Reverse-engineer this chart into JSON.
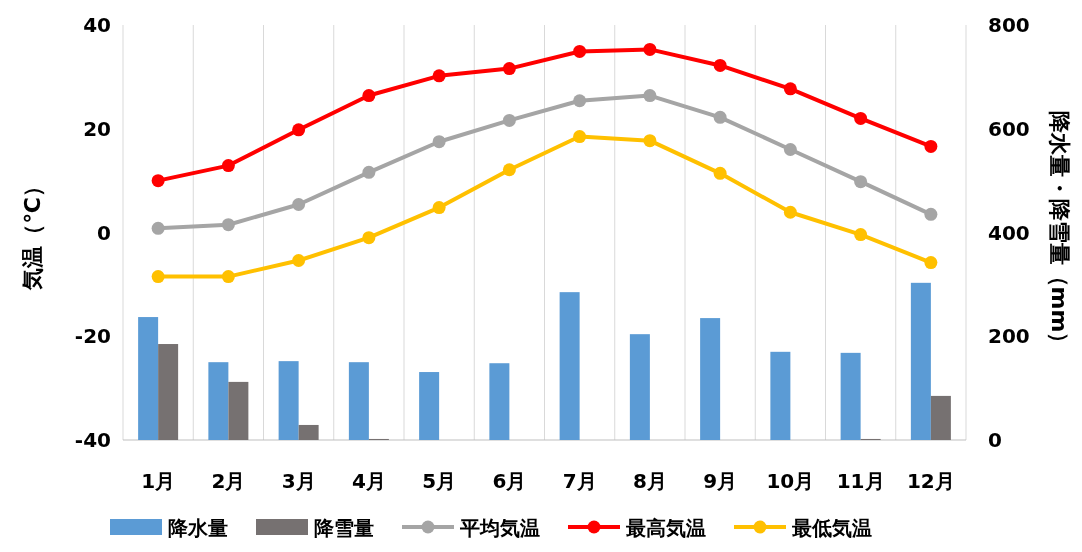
{
  "chart_data": {
    "type": "bar",
    "categories": [
      "1月",
      "2月",
      "3月",
      "4月",
      "5月",
      "6月",
      "7月",
      "8月",
      "9月",
      "10月",
      "11月",
      "12月"
    ],
    "ylabel": "気温（℃）",
    "y2label": "降水量・降雪量（mm）",
    "ylim": [
      -40,
      40
    ],
    "yticks": [
      -40,
      -20,
      0,
      20,
      40
    ],
    "y2lim": [
      0,
      800
    ],
    "y2ticks": [
      0,
      200,
      400,
      600,
      800
    ],
    "grid": "x",
    "legend": "bottom",
    "series": [
      {
        "name": "降水量",
        "axis": "y2",
        "color": "#5b9bd5",
        "values": [
          237,
          150,
          152,
          150,
          131,
          148,
          285,
          204,
          235,
          170,
          168,
          303
        ]
      },
      {
        "name": "降雪量",
        "axis": "y2",
        "color": "#767171",
        "values": [
          185,
          112,
          29,
          2,
          0,
          0,
          0,
          0,
          0,
          0,
          2,
          85
        ]
      },
      {
        "name": "平均気温",
        "type": "line",
        "marker": "circle",
        "color": "#a5a5a5",
        "values": [
          0.8,
          1.5,
          5.4,
          11.6,
          17.5,
          21.6,
          25.4,
          26.4,
          22.2,
          16.0,
          9.8,
          3.5
        ]
      },
      {
        "name": "最高気温",
        "type": "line",
        "marker": "circle",
        "color": "#ff0000",
        "values": [
          10.0,
          12.9,
          19.8,
          26.4,
          30.2,
          31.6,
          34.9,
          35.3,
          32.2,
          27.7,
          22.0,
          16.6
        ]
      },
      {
        "name": "最低気温",
        "type": "line",
        "marker": "circle",
        "color": "#ffc000",
        "values": [
          -8.5,
          -8.5,
          -5.4,
          -1.0,
          4.8,
          12.1,
          18.5,
          17.7,
          11.4,
          3.9,
          -0.4,
          -5.8
        ]
      }
    ]
  }
}
